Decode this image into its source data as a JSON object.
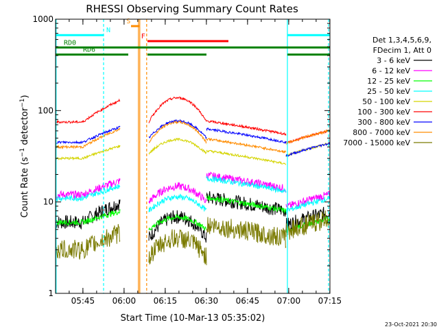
{
  "chart_data": {
    "type": "line",
    "title": "RHESSI Observing Summary Count Rates",
    "xlabel": "Start Time (10-Mar-13 05:35:02)",
    "ylabel": "Count Rate (s⁻¹ detector⁻¹)",
    "ylabel_base": "Count Rate (s",
    "ylabel_sup1": "−1",
    "ylabel_mid": " detector",
    "ylabel_sup2": "−1",
    "ylabel_end": ")",
    "y_scale": "log",
    "ylim": [
      1,
      1000
    ],
    "xlim_minutes": [
      0,
      100
    ],
    "x_ticks": [
      {
        "label": "05:45",
        "minute": 9.97
      },
      {
        "label": "06:00",
        "minute": 24.97
      },
      {
        "label": "06:15",
        "minute": 39.97
      },
      {
        "label": "06:30",
        "minute": 54.97
      },
      {
        "label": "06:45",
        "minute": 69.97
      },
      {
        "label": "07:00",
        "minute": 84.97
      },
      {
        "label": "07:15",
        "minute": 99.97
      }
    ],
    "y_ticks": [
      {
        "label": "1",
        "value": 1
      },
      {
        "label": "10",
        "value": 10
      },
      {
        "label": "100",
        "value": 100
      },
      {
        "label": "1000",
        "value": 1000
      }
    ],
    "legend_header": [
      "Det 1,3,4,5,6,9,",
      "FDecim 1, Att 0"
    ],
    "series": [
      {
        "name": "3 - 6 keV",
        "color": "#000000"
      },
      {
        "name": "6 - 12 keV",
        "color": "#ff00ff"
      },
      {
        "name": "12 - 25 keV",
        "color": "#00ff00"
      },
      {
        "name": "25 - 50 keV",
        "color": "#00ffff"
      },
      {
        "name": "50 - 100 keV",
        "color": "#d4d400"
      },
      {
        "name": "100 - 300 keV",
        "color": "#ff0000"
      },
      {
        "name": "300 - 800 keV",
        "color": "#0000ff"
      },
      {
        "name": "800 - 7000 keV",
        "color": "#ff8c00"
      },
      {
        "name": "7000 - 15000 keV",
        "color": "#7a7a00"
      }
    ],
    "flag_bars": [
      {
        "label": "N",
        "color": "#00ffff",
        "segments": [
          [
            0,
            17.5
          ],
          [
            84.5,
            100
          ]
        ],
        "level": 670
      },
      {
        "label": "S",
        "color": "#ff8c00",
        "segments": [
          [
            27.5,
            30.5
          ]
        ],
        "level": 840
      },
      {
        "label": "F",
        "color": "#ff0000",
        "segments": [
          [
            33.5,
            63
          ]
        ],
        "level": 575
      },
      {
        "label": "RD0",
        "color": "#008000",
        "segments": [
          [
            0,
            84.5
          ],
          [
            84.5,
            100
          ]
        ],
        "level": 490
      },
      {
        "label": "RD6",
        "color": "#008000",
        "segments": [
          [
            0,
            26.5
          ],
          [
            33.5,
            55
          ],
          [
            84.5,
            100
          ]
        ],
        "level": 410
      }
    ],
    "grid": false
  },
  "footer": {
    "date_stamp": "23-Oct-2021 20:30"
  }
}
